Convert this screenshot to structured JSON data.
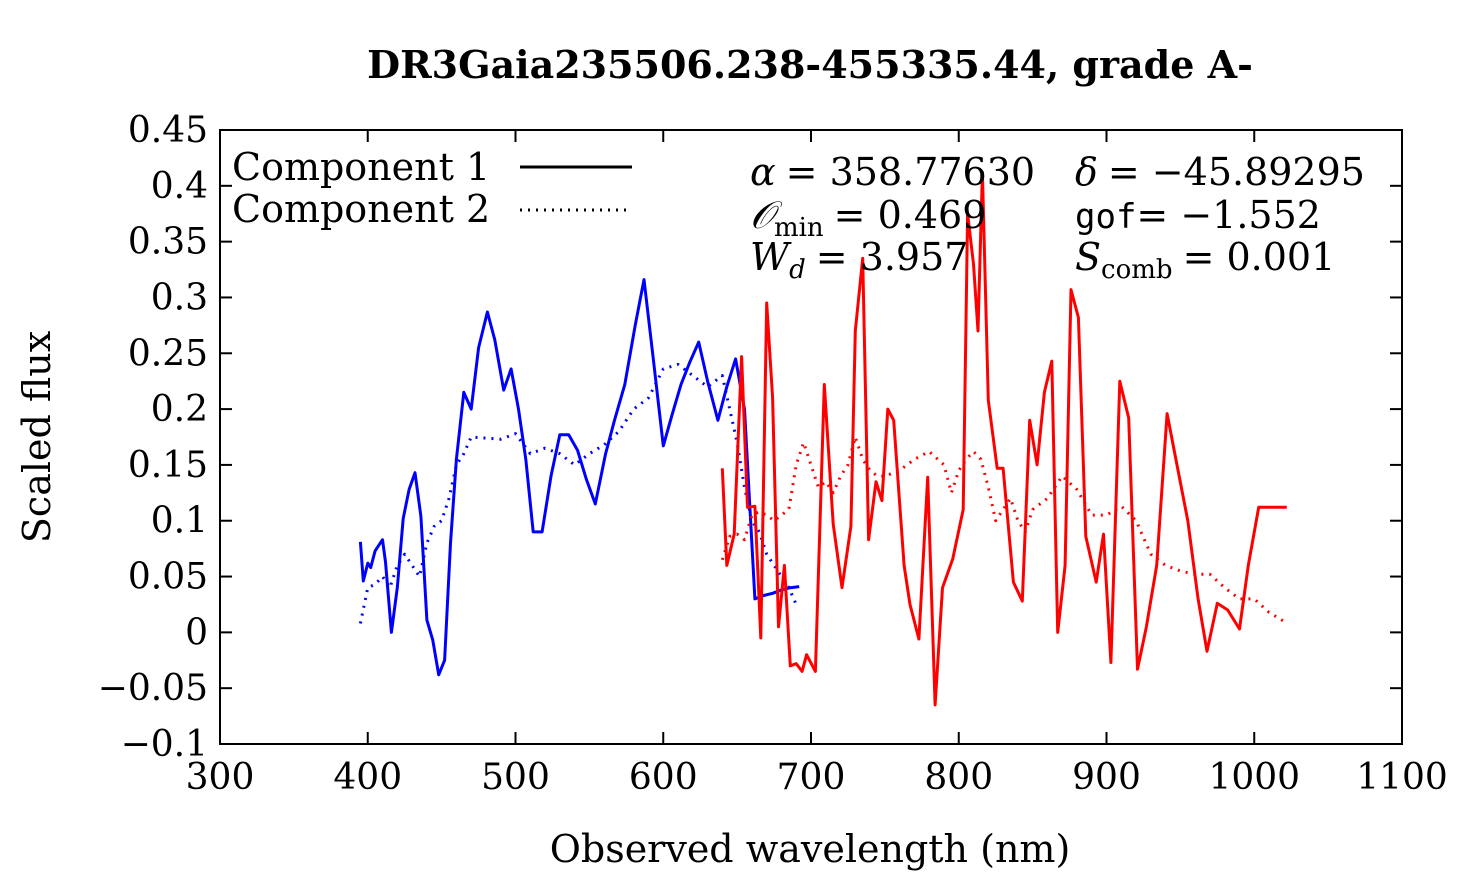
{
  "chart_data": {
    "type": "line",
    "title": "DR3Gaia235506.238-455335.44, grade A-",
    "xlabel": "Observed wavelength (nm)",
    "ylabel": "Scaled flux",
    "xlim": [
      300,
      1100
    ],
    "ylim": [
      -0.1,
      0.45
    ],
    "xticks": [
      300,
      400,
      500,
      600,
      700,
      800,
      900,
      1000,
      1100
    ],
    "xtick_labels": [
      "300",
      "400",
      "500",
      "600",
      "700",
      "800",
      "900",
      "1000",
      "1100"
    ],
    "yticks": [
      -0.1,
      -0.05,
      0,
      0.05,
      0.1,
      0.15,
      0.2,
      0.25,
      0.3,
      0.35,
      0.4,
      0.45
    ],
    "ytick_labels": [
      "−0.1",
      "−0.05",
      "0",
      "0.05",
      "0.1",
      "0.15",
      "0.2",
      "0.25",
      "0.3",
      "0.35",
      "0.4",
      "0.45"
    ],
    "legend": {
      "placement": "top-left",
      "entries": [
        {
          "label": "Component 1",
          "style": "solid"
        },
        {
          "label": "Component 2",
          "style": "dotted"
        }
      ]
    },
    "annotations": {
      "alpha": {
        "symbol": "α",
        "value": "= 358.77630"
      },
      "delta": {
        "symbol": "δ",
        "value": "= −45.89295"
      },
      "omin": {
        "symbol": "𝒪",
        "sub": "min",
        "value": "= 0.469"
      },
      "gof": {
        "symbol": "gof",
        "value": "= −1.552"
      },
      "wd": {
        "symbol": "W",
        "sub": "d",
        "value": "= 3.957"
      },
      "scomb": {
        "symbol": "S",
        "sub": "comb",
        "value": "= 0.001"
      }
    },
    "series": [
      {
        "name": "Component 1 (blue)",
        "color": "#0000ff",
        "style": "solid",
        "x": [
          395,
          397,
          400,
          402,
          405,
          410,
          412,
          416,
          420,
          424,
          428,
          432,
          436,
          440,
          444,
          448,
          452,
          456,
          460,
          465,
          470,
          475,
          481,
          486,
          492,
          497,
          502,
          507,
          512,
          518,
          524,
          530,
          536,
          542,
          548,
          554,
          561,
          567,
          574,
          581,
          587,
          593,
          600,
          606,
          612,
          618,
          624,
          630,
          637,
          643,
          649,
          655,
          662,
          668,
          674,
          680,
          686,
          692
        ],
        "y": [
          0.081,
          0.046,
          0.062,
          0.058,
          0.073,
          0.083,
          0.063,
          0.0,
          0.04,
          0.102,
          0.128,
          0.143,
          0.104,
          0.011,
          -0.007,
          -0.038,
          -0.025,
          0.08,
          0.155,
          0.215,
          0.2,
          0.255,
          0.287,
          0.262,
          0.217,
          0.236,
          0.2,
          0.155,
          0.09,
          0.09,
          0.14,
          0.177,
          0.177,
          0.163,
          0.137,
          0.115,
          0.16,
          0.19,
          0.222,
          0.275,
          0.316,
          0.248,
          0.167,
          0.195,
          0.222,
          0.242,
          0.26,
          0.225,
          0.19,
          0.22,
          0.245,
          0.2,
          0.03,
          0.033,
          0.035,
          0.038,
          0.04,
          0.041
        ]
      },
      {
        "name": "Component 2 (blue)",
        "color": "#0000ff",
        "style": "dotted",
        "x": [
          395,
          400,
          405,
          410,
          415,
          420,
          425,
          430,
          435,
          440,
          445,
          450,
          455,
          460,
          465,
          470,
          480,
          490,
          500,
          510,
          520,
          530,
          540,
          550,
          560,
          570,
          580,
          590,
          600,
          610,
          620,
          630,
          640,
          645,
          650,
          655,
          660,
          665,
          670,
          675,
          680,
          685,
          690
        ],
        "y": [
          0.008,
          0.04,
          0.043,
          0.05,
          0.04,
          0.06,
          0.07,
          0.06,
          0.05,
          0.08,
          0.095,
          0.1,
          0.12,
          0.15,
          0.16,
          0.175,
          0.174,
          0.173,
          0.178,
          0.16,
          0.165,
          0.16,
          0.15,
          0.16,
          0.168,
          0.18,
          0.2,
          0.21,
          0.236,
          0.24,
          0.23,
          0.22,
          0.23,
          0.2,
          0.17,
          0.13,
          0.1,
          0.09,
          0.07,
          0.06,
          0.05,
          0.04,
          0.025
        ]
      },
      {
        "name": "Component 1 (red)",
        "color": "#ff0000",
        "style": "solid",
        "x": [
          640,
          643,
          648,
          653,
          657,
          662,
          666,
          670,
          674,
          678,
          682,
          686,
          690,
          694,
          697,
          703,
          709,
          715,
          721,
          727,
          730,
          735,
          739,
          744,
          748,
          752,
          756,
          763,
          767,
          773,
          779,
          784,
          789,
          796,
          803,
          806,
          810,
          813,
          816,
          820,
          826,
          830,
          837,
          843,
          848,
          853,
          858,
          863,
          867,
          872,
          876,
          881,
          886,
          893,
          898,
          903,
          909,
          915,
          921,
          927,
          934,
          941,
          947,
          955,
          962,
          968,
          975,
          982,
          990,
          996,
          1003,
          1008,
          1015,
          1022
        ],
        "y": [
          0.147,
          0.06,
          0.088,
          0.247,
          0.112,
          0.113,
          -0.005,
          0.295,
          0.21,
          0.005,
          0.06,
          -0.03,
          -0.028,
          -0.035,
          -0.02,
          -0.035,
          0.222,
          0.097,
          0.04,
          0.095,
          0.27,
          0.335,
          0.083,
          0.135,
          0.118,
          0.2,
          0.19,
          0.06,
          0.025,
          -0.006,
          0.139,
          -0.065,
          0.04,
          0.066,
          0.11,
          0.375,
          0.33,
          0.27,
          0.412,
          0.208,
          0.147,
          0.147,
          0.045,
          0.028,
          0.19,
          0.15,
          0.215,
          0.243,
          0.0,
          0.06,
          0.307,
          0.282,
          0.086,
          0.045,
          0.088,
          -0.027,
          0.225,
          0.192,
          -0.033,
          0.005,
          0.06,
          0.196,
          0.155,
          0.1,
          0.03,
          -0.017,
          0.026,
          0.02,
          0.003,
          0.06,
          0.112,
          0.112,
          0.112,
          0.112
        ]
      },
      {
        "name": "Component 2 (red)",
        "color": "#ff0000",
        "style": "dotted",
        "x": [
          640,
          645,
          650,
          655,
          660,
          665,
          670,
          675,
          680,
          685,
          690,
          695,
          700,
          705,
          710,
          715,
          720,
          725,
          730,
          735,
          740,
          745,
          750,
          760,
          770,
          780,
          790,
          795,
          800,
          805,
          810,
          815,
          820,
          825,
          830,
          835,
          840,
          845,
          850,
          860,
          870,
          880,
          890,
          900,
          910,
          920,
          930,
          940,
          950,
          960,
          970,
          980,
          990,
          1000,
          1010,
          1020
        ],
        "y": [
          0.065,
          0.086,
          0.088,
          0.083,
          0.105,
          0.108,
          0.105,
          0.1,
          0.105,
          0.11,
          0.15,
          0.17,
          0.15,
          0.13,
          0.135,
          0.125,
          0.14,
          0.15,
          0.175,
          0.155,
          0.145,
          0.14,
          0.14,
          0.145,
          0.155,
          0.162,
          0.15,
          0.125,
          0.145,
          0.155,
          0.162,
          0.155,
          0.13,
          0.1,
          0.11,
          0.12,
          0.1,
          0.09,
          0.11,
          0.12,
          0.14,
          0.128,
          0.105,
          0.105,
          0.113,
          0.1,
          0.07,
          0.06,
          0.055,
          0.052,
          0.052,
          0.04,
          0.03,
          0.03,
          0.018,
          0.01
        ]
      }
    ]
  }
}
